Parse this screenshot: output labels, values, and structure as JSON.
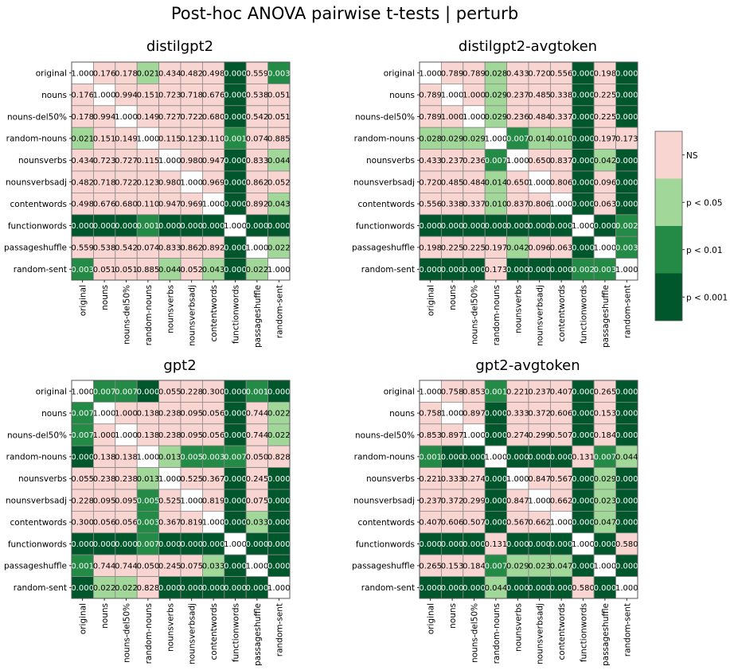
{
  "figure": {
    "title": "Post-hoc ANOVA pairwise t-tests | perturb"
  },
  "labels": [
    "original",
    "nouns",
    "nouns-del50%",
    "random-nouns",
    "nounsverbs",
    "nounsverbsadj",
    "contentwords",
    "functionwords",
    "passageshuffle",
    "random-sent"
  ],
  "colors": {
    "ns": "#f8d5d1",
    "p05": "#a1d799",
    "p01": "#238b45",
    "p001": "#00572b",
    "diag": "#ffffff",
    "grid": "#888888"
  },
  "legend": {
    "items": [
      {
        "label": "NS",
        "color": "#f8d5d1"
      },
      {
        "label": "p < 0.05",
        "color": "#a1d799"
      },
      {
        "label": "p < 0.01",
        "color": "#238b45"
      },
      {
        "label": "p < 0.001",
        "color": "#00572b"
      }
    ]
  },
  "chart_data": [
    {
      "type": "heatmap",
      "title": "distilgpt2",
      "values": [
        [
          1.0,
          0.176,
          0.178,
          0.021,
          0.434,
          0.482,
          0.498,
          0.0,
          0.559,
          0.003
        ],
        [
          0.176,
          1.0,
          0.994,
          0.151,
          0.723,
          0.718,
          0.676,
          0.0,
          0.538,
          0.051
        ],
        [
          0.178,
          0.994,
          1.0,
          0.149,
          0.727,
          0.722,
          0.68,
          0.0,
          0.542,
          0.051
        ],
        [
          0.021,
          0.151,
          0.149,
          1.0,
          0.115,
          0.123,
          0.11,
          0.001,
          0.074,
          0.885
        ],
        [
          0.434,
          0.723,
          0.727,
          0.115,
          1.0,
          0.98,
          0.947,
          0.0,
          0.833,
          0.044
        ],
        [
          0.482,
          0.718,
          0.722,
          0.123,
          0.98,
          1.0,
          0.969,
          0.0,
          0.862,
          0.052
        ],
        [
          0.498,
          0.676,
          0.68,
          0.11,
          0.947,
          0.969,
          1.0,
          0.0,
          0.892,
          0.043
        ],
        [
          0.0,
          0.0,
          0.0,
          0.001,
          0.0,
          0.0,
          0.0,
          1.0,
          0.0,
          0.0
        ],
        [
          0.559,
          0.538,
          0.542,
          0.074,
          0.833,
          0.862,
          0.892,
          0.0,
          1.0,
          0.022
        ],
        [
          0.003,
          0.051,
          0.051,
          0.885,
          0.044,
          0.052,
          0.043,
          0.0,
          0.022,
          1.0
        ]
      ]
    },
    {
      "type": "heatmap",
      "title": "distilgpt2-avgtoken",
      "values": [
        [
          1.0,
          0.789,
          0.789,
          0.028,
          0.433,
          0.72,
          0.556,
          0.0,
          0.198,
          0.0
        ],
        [
          0.789,
          1.0,
          1.0,
          0.029,
          0.237,
          0.485,
          0.338,
          0.0,
          0.225,
          0.0
        ],
        [
          0.789,
          1.0,
          1.0,
          0.029,
          0.236,
          0.484,
          0.337,
          0.0,
          0.225,
          0.0
        ],
        [
          0.028,
          0.029,
          0.029,
          1.0,
          0.007,
          0.014,
          0.01,
          0.0,
          0.197,
          0.173
        ],
        [
          0.433,
          0.237,
          0.236,
          0.007,
          1.0,
          0.65,
          0.837,
          0.0,
          0.042,
          0.0
        ],
        [
          0.72,
          0.485,
          0.484,
          0.014,
          0.65,
          1.0,
          0.806,
          0.0,
          0.096,
          0.0
        ],
        [
          0.556,
          0.338,
          0.337,
          0.01,
          0.837,
          0.806,
          1.0,
          0.0,
          0.063,
          0.0
        ],
        [
          0.0,
          0.0,
          0.0,
          0.0,
          0.0,
          0.0,
          0.0,
          1.0,
          0.0,
          0.002
        ],
        [
          0.198,
          0.225,
          0.225,
          0.197,
          0.042,
          0.096,
          0.063,
          0.0,
          1.0,
          0.003
        ],
        [
          0.0,
          0.0,
          0.0,
          0.173,
          0.0,
          0.0,
          0.0,
          0.002,
          0.003,
          1.0
        ]
      ]
    },
    {
      "type": "heatmap",
      "title": "gpt2",
      "values": [
        [
          1.0,
          0.007,
          0.007,
          0.0,
          0.055,
          0.228,
          0.3,
          0.0,
          0.001,
          0.0
        ],
        [
          0.007,
          1.0,
          1.0,
          0.138,
          0.238,
          0.095,
          0.056,
          0.0,
          0.744,
          0.022
        ],
        [
          0.007,
          1.0,
          1.0,
          0.138,
          0.238,
          0.095,
          0.056,
          0.0,
          0.744,
          0.022
        ],
        [
          0.0,
          0.138,
          0.138,
          1.0,
          0.013,
          0.005,
          0.003,
          0.007,
          0.05,
          0.828
        ],
        [
          0.055,
          0.238,
          0.238,
          0.013,
          1.0,
          0.525,
          0.367,
          0.0,
          0.245,
          0.0
        ],
        [
          0.228,
          0.095,
          0.095,
          0.005,
          0.525,
          1.0,
          0.819,
          0.0,
          0.075,
          0.0
        ],
        [
          0.3,
          0.056,
          0.056,
          0.003,
          0.367,
          0.819,
          1.0,
          0.0,
          0.033,
          0.0
        ],
        [
          0.0,
          0.0,
          0.0,
          0.007,
          0.0,
          0.0,
          0.0,
          1.0,
          0.0,
          0.0
        ],
        [
          0.001,
          0.744,
          0.744,
          0.05,
          0.245,
          0.075,
          0.033,
          0.0,
          1.0,
          0.0
        ],
        [
          0.0,
          0.022,
          0.022,
          0.828,
          0.0,
          0.0,
          0.0,
          0.0,
          0.0,
          1.0
        ]
      ]
    },
    {
      "type": "heatmap",
      "title": "gpt2-avgtoken",
      "values": [
        [
          1.0,
          0.758,
          0.853,
          0.001,
          0.221,
          0.237,
          0.407,
          0.0,
          0.265,
          0.0
        ],
        [
          0.758,
          1.0,
          0.897,
          0.0,
          0.333,
          0.372,
          0.606,
          0.0,
          0.153,
          0.0
        ],
        [
          0.853,
          0.897,
          1.0,
          0.0,
          0.274,
          0.299,
          0.507,
          0.0,
          0.184,
          0.0
        ],
        [
          0.001,
          0.0,
          0.0,
          1.0,
          0.0,
          0.0,
          0.0,
          0.131,
          0.007,
          0.044
        ],
        [
          0.221,
          0.333,
          0.274,
          0.0,
          1.0,
          0.847,
          0.567,
          0.0,
          0.029,
          0.0
        ],
        [
          0.237,
          0.372,
          0.299,
          0.0,
          0.847,
          1.0,
          0.662,
          0.0,
          0.023,
          0.0
        ],
        [
          0.407,
          0.606,
          0.507,
          0.0,
          0.567,
          0.662,
          1.0,
          0.0,
          0.047,
          0.0
        ],
        [
          0.0,
          0.0,
          0.0,
          0.131,
          0.0,
          0.0,
          0.0,
          1.0,
          0.0,
          0.58
        ],
        [
          0.265,
          0.153,
          0.184,
          0.007,
          0.029,
          0.023,
          0.047,
          0.0,
          1.0,
          0.0
        ],
        [
          0.0,
          0.0,
          0.0,
          0.044,
          0.0,
          0.0,
          0.0,
          0.58,
          0.0,
          1.0
        ]
      ]
    }
  ]
}
